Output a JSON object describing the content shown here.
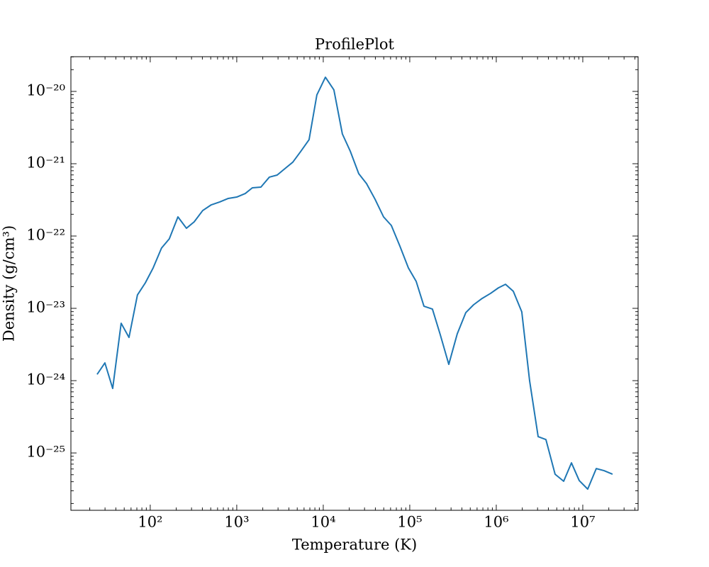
{
  "chart_data": {
    "type": "line",
    "title": "ProfilePlot",
    "x_label": "Temperature (K)",
    "y_label": "Density (g/cm³)",
    "xscale": "log",
    "yscale": "log",
    "color": "#1f77b4",
    "x": [
      24.3,
      29.9,
      36.8,
      46.1,
      56.8,
      71.1,
      87.7,
      108,
      135,
      166,
      209,
      262,
      322,
      404,
      507,
      636,
      798,
      1000,
      1253,
      1514,
      1901,
      2382,
      2931,
      3681,
      4446,
      5470,
      6855,
      8433,
      10590,
      13270,
      16630,
      20480,
      25700,
      31620,
      39630,
      49770,
      61230,
      76740,
      96380,
      118600,
      145900,
      182800,
      224900,
      282500,
      354000,
      444600,
      547000,
      685500,
      859000,
      1059000,
      1279000,
      1574000,
      1972000,
      2427000,
      3048000,
      3750000,
      4786000,
      6012000,
      7396000,
      9099000,
      11400000,
      14320000,
      17620000,
      22080000
    ],
    "values": [
      1.22e-24,
      1.76e-24,
      7.8e-25,
      6.22e-24,
      3.96e-24,
      1.53e-23,
      2.25e-23,
      3.62e-23,
      6.81e-23,
      9.14e-23,
      1.84e-22,
      1.28e-22,
      1.57e-22,
      2.25e-22,
      2.7e-22,
      2.96e-22,
      3.31e-22,
      3.46e-22,
      3.87e-22,
      4.64e-22,
      4.75e-22,
      6.52e-22,
      6.97e-22,
      8.73e-22,
      1.05e-21,
      1.47e-21,
      2.15e-21,
      8.93e-21,
      1.57e-20,
      1.05e-20,
      2.58e-21,
      1.5e-21,
      7.29e-22,
      5.31e-22,
      3.24e-22,
      1.84e-22,
      1.4e-22,
      7.29e-23,
      3.62e-23,
      2.36e-23,
      1.07e-23,
      9.77e-24,
      4.34e-24,
      1.68e-24,
      4.44e-24,
      8.73e-24,
      1.12e-23,
      1.37e-23,
      1.61e-23,
      1.92e-23,
      2.15e-23,
      1.72e-23,
      8.93e-24,
      1e-24,
      1.68e-25,
      1.53e-25,
      5.08e-26,
      4.06e-26,
      7.29e-26,
      4.15e-26,
      3.16e-26,
      6.08e-26,
      5.69e-26,
      5.08e-26
    ],
    "xlim": [
      12.1,
      43600000
    ],
    "ylim": [
      1.61e-26,
      3.02e-20
    ],
    "xticks": [
      {
        "value": 100,
        "label": "10²"
      },
      {
        "value": 1000,
        "label": "10³"
      },
      {
        "value": 10000,
        "label": "10⁴"
      },
      {
        "value": 100000,
        "label": "10⁵"
      },
      {
        "value": 1000000,
        "label": "10⁶"
      },
      {
        "value": 10000000,
        "label": "10⁷"
      }
    ],
    "yticks": [
      {
        "value": 1e-20,
        "label": "10⁻²⁰"
      },
      {
        "value": 1e-21,
        "label": "10⁻²¹"
      },
      {
        "value": 1e-22,
        "label": "10⁻²²"
      },
      {
        "value": 1e-23,
        "label": "10⁻²³"
      },
      {
        "value": 1e-24,
        "label": "10⁻²⁴"
      },
      {
        "value": 1e-25,
        "label": "10⁻²⁵"
      }
    ]
  }
}
